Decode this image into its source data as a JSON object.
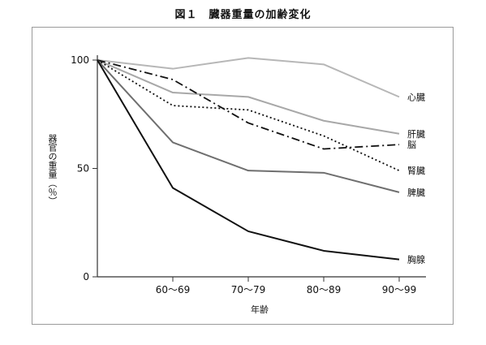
{
  "figure": {
    "title": "図１　臓器重量の加齢変化"
  },
  "chart_data": {
    "type": "line",
    "x_categories": [
      "",
      "60～69",
      "70～79",
      "80～89",
      "90～99"
    ],
    "xlabel": "年齢",
    "ylabel": "器官の重量（％）",
    "ylim": [
      0,
      100
    ],
    "yticks": [
      "0",
      "50",
      "100"
    ],
    "grid": false,
    "legend": "labels at line ends (right)",
    "series": [
      {
        "name": "心臓",
        "values": [
          100,
          96,
          101,
          98,
          83
        ],
        "color": "#b7b7b7",
        "dash": "solid"
      },
      {
        "name": "肝臓",
        "values": [
          100,
          85,
          83,
          72,
          66
        ],
        "color": "#a8a8a8",
        "dash": "solid"
      },
      {
        "name": "脳",
        "values": [
          100,
          91,
          71,
          59,
          61
        ],
        "color": "#111111",
        "dash": "dashdot"
      },
      {
        "name": "腎臓",
        "values": [
          100,
          79,
          77,
          65,
          49
        ],
        "color": "#111111",
        "dash": "dotted"
      },
      {
        "name": "脾臓",
        "values": [
          100,
          62,
          49,
          48,
          39
        ],
        "color": "#6f6f6f",
        "dash": "solid"
      },
      {
        "name": "胸腺",
        "values": [
          100,
          41,
          21,
          12,
          8
        ],
        "color": "#111111",
        "dash": "solid"
      }
    ]
  }
}
